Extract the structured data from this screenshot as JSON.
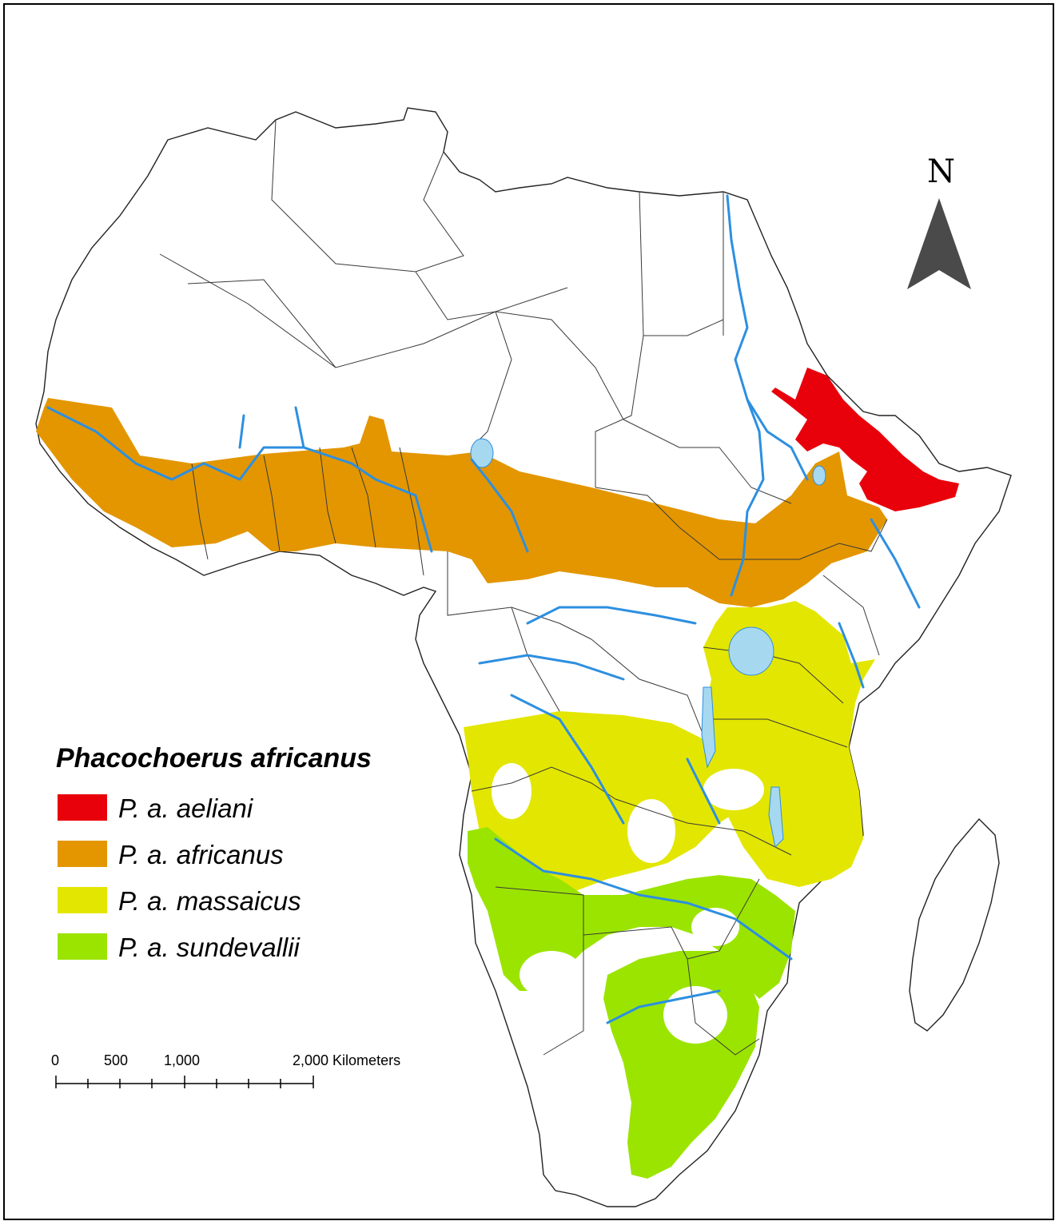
{
  "map": {
    "species_title": "Phacochoerus africanus",
    "legend": [
      {
        "label": "P. a. aeliani",
        "color": "#e8000b"
      },
      {
        "label": "P. a. africanus",
        "color": "#e39600"
      },
      {
        "label": "P. a. massaicus",
        "color": "#e3e600"
      },
      {
        "label": "P. a. sundevallii",
        "color": "#9be400"
      }
    ],
    "north_label": "N",
    "scale_bar": {
      "tick_labels": [
        "0",
        "500",
        "1,000",
        "2,000 Kilometers"
      ]
    },
    "colors": {
      "river": "#2d8fe0",
      "lake": "#a6d8f0",
      "border": "#3a3a3a",
      "arrow": "#4a4a4a"
    }
  }
}
